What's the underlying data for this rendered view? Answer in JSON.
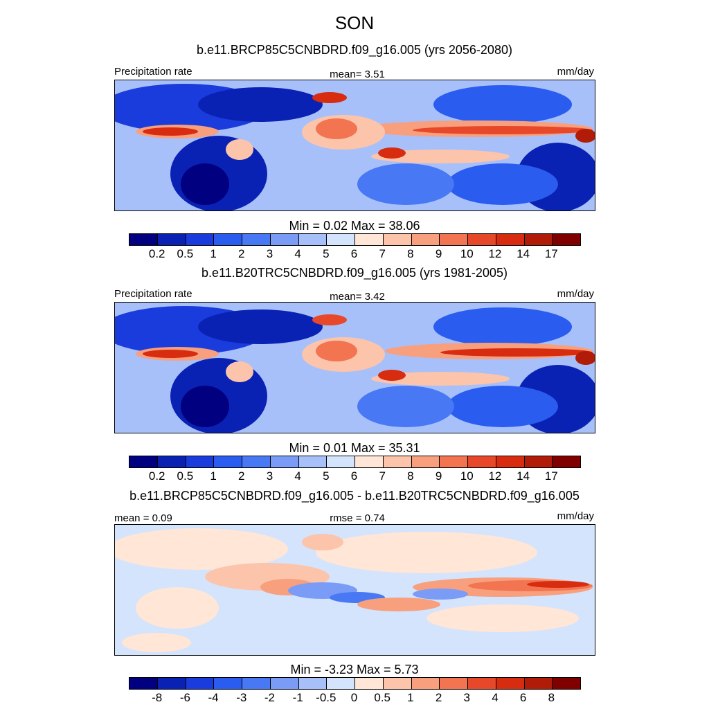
{
  "title": "SON",
  "panels": [
    {
      "title": "b.e11.BRCP85C5CNBDRD.f09_g16.005 (yrs 2056-2080)",
      "left_label": "Precipitation rate",
      "center_label": "mean=   3.51",
      "right_label": "mm/day",
      "minmax": "Min =   0.02 Max =  38.06"
    },
    {
      "title": "b.e11.B20TRC5CNBDRD.f09_g16.005 (yrs 1981-2005)",
      "left_label": "Precipitation rate",
      "center_label": "mean=   3.42",
      "right_label": "mm/day",
      "minmax": "Min =   0.01 Max =  35.31"
    },
    {
      "title": "b.e11.BRCP85C5CNBDRD.f09_g16.005 - b.e11.B20TRC5CNBDRD.f09_g16.005",
      "left_label": "mean =   0.09",
      "center_label": "rmse =   0.74",
      "right_label": "mm/day",
      "minmax": "Min =  -3.23 Max =   5.73"
    }
  ],
  "colorbars": {
    "precip": {
      "colors": [
        "#000080",
        "#0a22b4",
        "#1a3cdc",
        "#2a5cf0",
        "#4878f4",
        "#7a9cf6",
        "#a8c0fa",
        "#d4e4fc",
        "#ffe6d6",
        "#fcc4aa",
        "#f8a07e",
        "#f27450",
        "#e8482a",
        "#d82c10",
        "#b01c08",
        "#800000"
      ],
      "labels": [
        "0.2",
        "0.5",
        "1",
        "2",
        "3",
        "4",
        "5",
        "6",
        "7",
        "8",
        "9",
        "10",
        "12",
        "14",
        "17"
      ]
    },
    "diff": {
      "colors": [
        "#000080",
        "#0a22b4",
        "#1a3cdc",
        "#2a5cf0",
        "#4878f4",
        "#7a9cf6",
        "#a8c0fa",
        "#d4e4fc",
        "#ffe6d6",
        "#fcc4aa",
        "#f8a07e",
        "#f27450",
        "#e8482a",
        "#d82c10",
        "#b01c08",
        "#800000"
      ],
      "labels": [
        "-8",
        "-6",
        "-4",
        "-3",
        "-2",
        "-1",
        "-0.5",
        "0",
        "0.5",
        "1",
        "2",
        "3",
        "4",
        "6",
        "8"
      ]
    }
  }
}
